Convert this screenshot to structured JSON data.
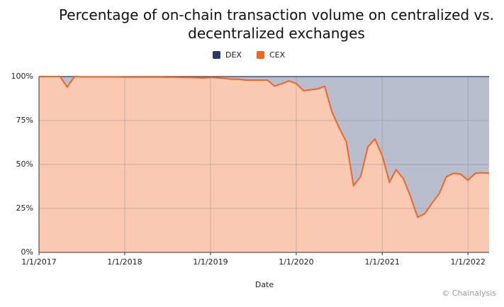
{
  "chart_data": {
    "type": "stacked-area",
    "title": "Percentage of on-chain transaction volume on centralized vs. decentralized exchanges",
    "x_label": "Date",
    "source": "© Chainalysis",
    "x": [
      "2017-01-01",
      "2017-02-01",
      "2017-03-01",
      "2017-04-01",
      "2017-05-01",
      "2017-06-01",
      "2017-07-01",
      "2017-08-01",
      "2017-09-01",
      "2017-10-01",
      "2017-11-01",
      "2017-12-01",
      "2018-01-01",
      "2018-02-01",
      "2018-03-01",
      "2018-04-01",
      "2018-05-01",
      "2018-06-01",
      "2018-07-01",
      "2018-08-01",
      "2018-09-01",
      "2018-10-01",
      "2018-11-01",
      "2018-12-01",
      "2019-01-01",
      "2019-02-01",
      "2019-03-01",
      "2019-04-01",
      "2019-05-01",
      "2019-06-01",
      "2019-07-01",
      "2019-08-01",
      "2019-09-01",
      "2019-10-01",
      "2019-11-01",
      "2019-12-01",
      "2020-01-01",
      "2020-02-01",
      "2020-03-01",
      "2020-04-01",
      "2020-05-01",
      "2020-06-01",
      "2020-07-01",
      "2020-08-01",
      "2020-09-01",
      "2020-10-01",
      "2020-11-01",
      "2020-12-01",
      "2021-01-01",
      "2021-02-01",
      "2021-03-01",
      "2021-04-01",
      "2021-05-01",
      "2021-06-01",
      "2021-07-01",
      "2021-08-01",
      "2021-09-01",
      "2021-10-01",
      "2021-11-01",
      "2021-12-01",
      "2022-01-01",
      "2022-02-01",
      "2022-03-01",
      "2022-04-01"
    ],
    "series": [
      {
        "name": "CEX",
        "color": "#f26522",
        "values": [
          100,
          100,
          100,
          100,
          94,
          100,
          99.8,
          99.8,
          99.8,
          99.8,
          99.8,
          99.8,
          99.7,
          99.7,
          99.7,
          99.7,
          99.7,
          99.7,
          99.6,
          99.6,
          99.5,
          99.5,
          99.4,
          99.2,
          99.5,
          99.3,
          99,
          98.5,
          98.5,
          98,
          98,
          98,
          98,
          94.5,
          96,
          97.5,
          96,
          92,
          92.5,
          93,
          94.5,
          80,
          71,
          63,
          38,
          43,
          60,
          64.5,
          55,
          40,
          47,
          42,
          32,
          20,
          22,
          28,
          33.5,
          43,
          45,
          44.5,
          41,
          45,
          45.3,
          45
        ]
      },
      {
        "name": "DEX",
        "color": "#2b3a6b",
        "values": [
          0,
          0,
          0,
          0,
          6,
          0,
          0.2,
          0.2,
          0.2,
          0.2,
          0.2,
          0.2,
          0.3,
          0.3,
          0.3,
          0.3,
          0.3,
          0.3,
          0.4,
          0.4,
          0.5,
          0.5,
          0.6,
          0.8,
          0.5,
          0.7,
          1,
          1.5,
          1.5,
          2,
          2,
          2,
          2,
          5.5,
          4,
          2.5,
          4,
          8,
          7.5,
          7,
          5.5,
          20,
          29,
          37,
          62,
          57,
          40,
          35.5,
          45,
          60,
          53,
          58,
          68,
          80,
          78,
          72,
          66.5,
          57,
          55,
          55.5,
          59,
          55,
          54.7,
          55
        ]
      }
    ],
    "legend_order": [
      "DEX",
      "CEX"
    ],
    "xlim": [
      "2017-01-01",
      "2022-04-01"
    ],
    "xticks": [
      {
        "value": "2017-01-01",
        "label": "1/1/2017"
      },
      {
        "value": "2018-01-01",
        "label": "1/1/2018"
      },
      {
        "value": "2019-01-01",
        "label": "1/1/2019"
      },
      {
        "value": "2020-01-01",
        "label": "1/1/2020"
      },
      {
        "value": "2021-01-01",
        "label": "1/1/2021"
      },
      {
        "value": "2022-01-01",
        "label": "1/1/2022"
      }
    ],
    "ylim": [
      0,
      100
    ],
    "yticks": [
      {
        "value": 0,
        "label": "0%"
      },
      {
        "value": 25,
        "label": "25%"
      },
      {
        "value": 50,
        "label": "50%"
      },
      {
        "value": 75,
        "label": "75%"
      },
      {
        "value": 100,
        "label": "100%"
      }
    ],
    "grid": true
  }
}
